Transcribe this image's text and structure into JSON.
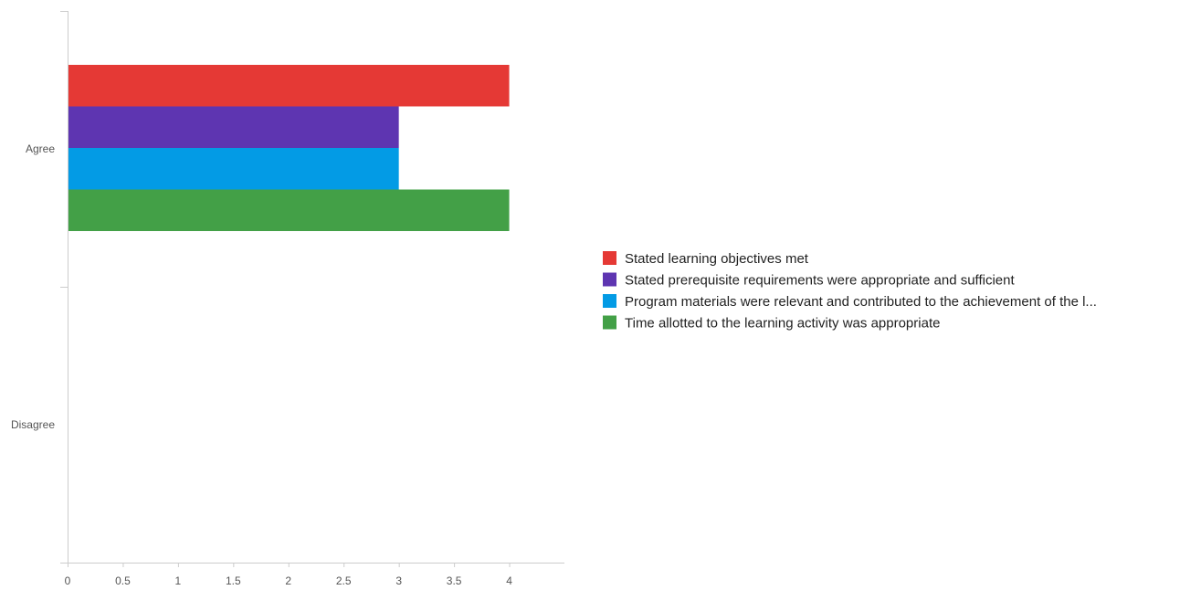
{
  "chart_data": {
    "type": "bar",
    "orientation": "horizontal",
    "categories": [
      "Agree",
      "Disagree"
    ],
    "series": [
      {
        "name": "Stated learning objectives met",
        "color": "#e53935",
        "values": [
          4,
          0
        ]
      },
      {
        "name": "Stated prerequisite requirements were appropriate and sufficient",
        "color": "#5e35b1",
        "values": [
          3,
          0
        ]
      },
      {
        "name": "Program materials were relevant and contributed to the achievement of the l...",
        "color": "#039be5",
        "values": [
          3,
          0
        ]
      },
      {
        "name": "Time allotted to the learning activity was appropriate",
        "color": "#43a047",
        "values": [
          4,
          0
        ]
      }
    ],
    "xlim": [
      0,
      4.5
    ],
    "x_ticks": [
      0,
      0.5,
      1,
      1.5,
      2,
      2.5,
      3,
      3.5,
      4
    ],
    "x_tick_labels": [
      "0",
      "0.5",
      "1",
      "1.5",
      "2",
      "2.5",
      "3",
      "3.5",
      "4"
    ],
    "grid": false,
    "legend_position": "right"
  }
}
